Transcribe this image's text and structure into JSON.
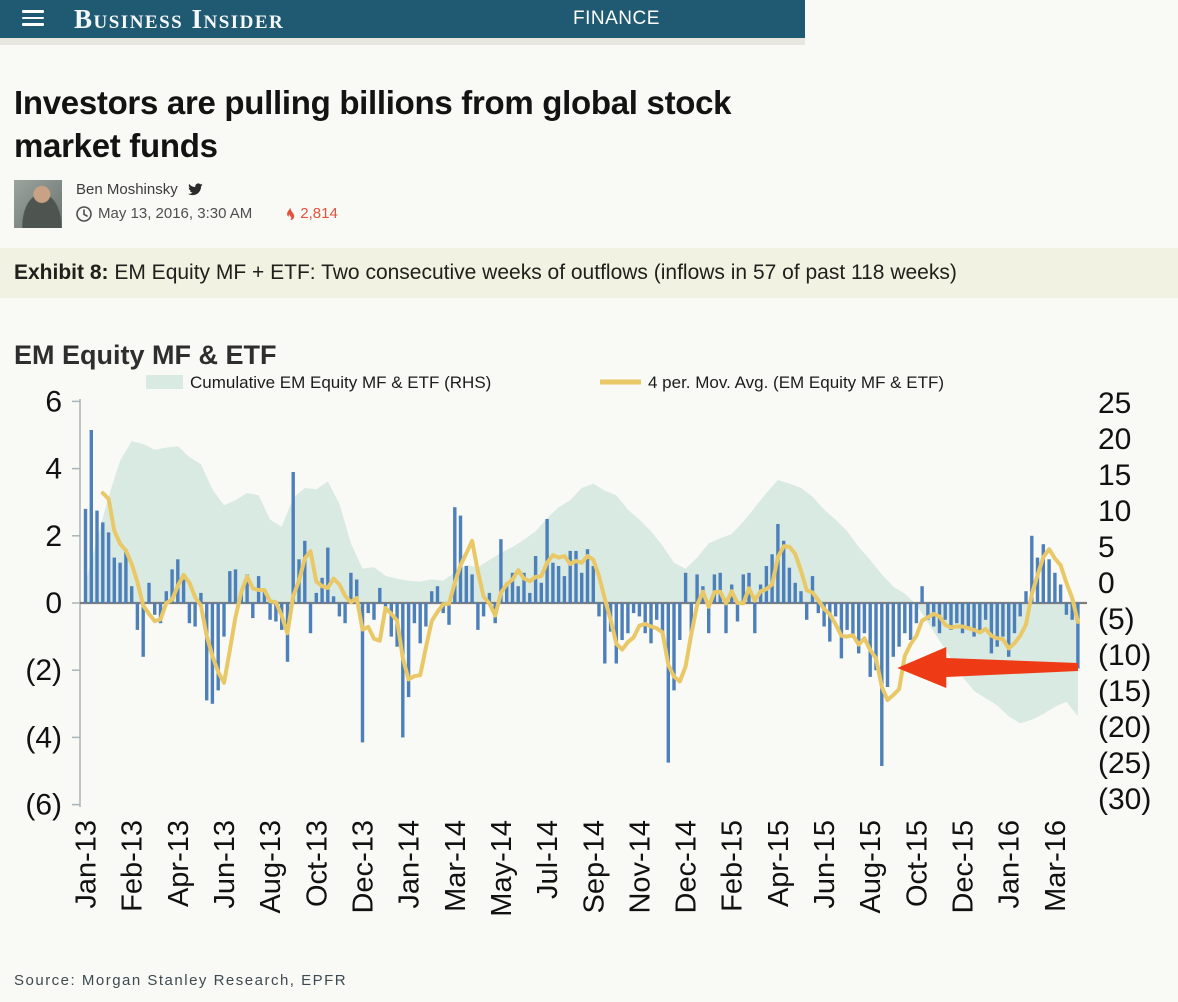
{
  "header": {
    "logo": "Business Insider",
    "section": "FINANCE"
  },
  "article": {
    "headline": "Investors are pulling billions from global stock market funds",
    "author": "Ben Moshinsky",
    "date": "May 13, 2016, 3:30 AM",
    "engagement_count": "2,814"
  },
  "exhibit": {
    "label": "Exhibit 8:",
    "caption": " EM Equity MF + ETF: Two consecutive weeks of outflows (inflows in 57 of past 118 weeks)"
  },
  "source": {
    "text": "Source: Morgan Stanley Research, EPFR"
  },
  "colors": {
    "topbar": "#1f5a72",
    "bar": "#4d80ba",
    "area": "#d9eae3",
    "ma_line": "#e9c868",
    "arrow": "#ee3a15",
    "zero_line": "#7d7d7d",
    "axis": "#a9b4b8",
    "accent_count": "#e2533c"
  },
  "chart_data": {
    "type": "bar",
    "subtype": "combo-bar-area-line",
    "title": "EM Equity MF & ETF",
    "legend": [
      {
        "label": "Cumulative EM Equity MF & ETF (RHS)",
        "type": "area"
      },
      {
        "label": "4 per. Mov. Avg. (EM Equity MF & ETF)",
        "type": "line"
      }
    ],
    "x_unit": "week",
    "n_weeks": 173,
    "x_axis": {
      "labels": [
        "Jan-13",
        "Feb-13",
        "Apr-13",
        "Jun-13",
        "Aug-13",
        "Oct-13",
        "Dec-13",
        "Jan-14",
        "Mar-14",
        "May-14",
        "Jul-14",
        "Sep-14",
        "Nov-14",
        "Dec-14",
        "Feb-15",
        "Apr-15",
        "Jun-15",
        "Aug-15",
        "Oct-15",
        "Dec-15",
        "Jan-16",
        "Mar-16"
      ],
      "label_indices": [
        0,
        8,
        16,
        24,
        32,
        40,
        48,
        56,
        64,
        72,
        80,
        88,
        96,
        104,
        112,
        120,
        128,
        136,
        144,
        152,
        160,
        168
      ]
    },
    "left_axis": {
      "ticks": [
        "6",
        "4",
        "2",
        "0",
        "(2)",
        "(4)",
        "(6)"
      ],
      "values": [
        6,
        4,
        2,
        0,
        -2,
        -4,
        -6
      ],
      "ylim": [
        -6,
        6
      ]
    },
    "right_axis": {
      "ticks": [
        "25",
        "20",
        "15",
        "10",
        "5",
        "0",
        "(5)",
        "(10)",
        "(15)",
        "(20)",
        "(25)",
        "(30)"
      ],
      "values": [
        25,
        20,
        15,
        10,
        5,
        0,
        -5,
        -10,
        -15,
        -20,
        -25,
        -30
      ],
      "ylim": [
        -30,
        25
      ]
    },
    "series": [
      {
        "name": "EM Equity MF & ETF weekly flows",
        "type": "bar",
        "axis": "left",
        "values": [
          2.8,
          5.15,
          2.75,
          2.4,
          2.1,
          1.35,
          1.2,
          1.6,
          0.5,
          -0.8,
          -1.6,
          0.6,
          -0.35,
          -0.6,
          0.35,
          1.0,
          1.3,
          0.7,
          -0.6,
          -0.7,
          0.3,
          -2.9,
          -3.0,
          -2.6,
          -1.0,
          0.95,
          1.0,
          0.35,
          0.85,
          -0.45,
          0.8,
          0.35,
          -0.5,
          -0.55,
          -0.8,
          -1.75,
          3.9,
          1.3,
          1.85,
          -0.9,
          0.3,
          0.75,
          1.65,
          0.2,
          -0.4,
          -0.6,
          0.9,
          0.7,
          -4.15,
          -0.3,
          -0.5,
          0.45,
          -0.25,
          -1.0,
          -1.3,
          -4.0,
          -2.8,
          -0.6,
          -1.2,
          -0.7,
          0.35,
          0.5,
          -0.3,
          -0.65,
          2.85,
          2.6,
          1.1,
          0.85,
          -0.8,
          -0.4,
          0.3,
          -0.6,
          1.9,
          0.6,
          0.9,
          0.5,
          0.9,
          0.3,
          1.4,
          0.6,
          2.5,
          1.2,
          1.1,
          0.8,
          1.55,
          1.55,
          0.9,
          1.6,
          1.1,
          -0.4,
          -1.8,
          -0.85,
          -1.8,
          -1.1,
          -0.9,
          -0.3,
          -0.4,
          -0.9,
          -1.2,
          -0.5,
          -0.9,
          -4.75,
          -2.6,
          -1.1,
          0.9,
          -0.9,
          0.85,
          0.5,
          -0.9,
          0.85,
          0.9,
          -0.9,
          0.55,
          -0.55,
          0.85,
          0.9,
          -0.9,
          0.55,
          1.1,
          1.45,
          2.35,
          1.85,
          1.05,
          0.6,
          0.35,
          -0.5,
          0.8,
          -0.3,
          -0.7,
          -1.15,
          -0.4,
          -1.65,
          -0.8,
          -1.0,
          -1.5,
          -0.9,
          -2.2,
          -2.0,
          -4.85,
          -2.5,
          -1.6,
          -1.3,
          -0.9,
          -1.1,
          -0.6,
          0.5,
          -0.5,
          -0.7,
          -0.9,
          -0.5,
          -0.8,
          -0.6,
          -0.9,
          -0.7,
          -1.0,
          -0.9,
          -0.5,
          -1.5,
          -1.3,
          -1.0,
          -1.6,
          -0.9,
          -0.4,
          0.35,
          2.0,
          1.35,
          1.75,
          1.3,
          0.9,
          0.55,
          -0.35,
          -0.5,
          -1.95
        ]
      },
      {
        "name": "Cumulative EM Equity MF & ETF (RHS)",
        "type": "area",
        "axis": "right",
        "anchor_points": [
          [
            0,
            0
          ],
          [
            2,
            6
          ],
          [
            4,
            12
          ],
          [
            6,
            17
          ],
          [
            8,
            19.7
          ],
          [
            10,
            19.3
          ],
          [
            12,
            18.5
          ],
          [
            14,
            18.8
          ],
          [
            16,
            19
          ],
          [
            18,
            17.5
          ],
          [
            20,
            16.5
          ],
          [
            22,
            13
          ],
          [
            24,
            10.8
          ],
          [
            26,
            11.5
          ],
          [
            28,
            12.5
          ],
          [
            30,
            12.2
          ],
          [
            32,
            8.8
          ],
          [
            34,
            7.8
          ],
          [
            36,
            11.8
          ],
          [
            38,
            13.2
          ],
          [
            40,
            13
          ],
          [
            42,
            14.1
          ],
          [
            44,
            11
          ],
          [
            46,
            5.5
          ],
          [
            48,
            2
          ],
          [
            50,
            2.2
          ],
          [
            52,
            1
          ],
          [
            54,
            0.6
          ],
          [
            56,
            0.3
          ],
          [
            58,
            0.2
          ],
          [
            60,
            0.5
          ],
          [
            62,
            0.3
          ],
          [
            64,
            1.5
          ],
          [
            66,
            2.5
          ],
          [
            68,
            2.2
          ],
          [
            70,
            3.2
          ],
          [
            72,
            4.2
          ],
          [
            74,
            5
          ],
          [
            76,
            6
          ],
          [
            78,
            7.2
          ],
          [
            80,
            9
          ],
          [
            82,
            10.5
          ],
          [
            84,
            11.5
          ],
          [
            86,
            13.2
          ],
          [
            88,
            13.8
          ],
          [
            90,
            12.8
          ],
          [
            92,
            12.2
          ],
          [
            94,
            10.2
          ],
          [
            96,
            8.8
          ],
          [
            98,
            7.2
          ],
          [
            100,
            5.2
          ],
          [
            102,
            2.8
          ],
          [
            104,
            2
          ],
          [
            106,
            3.5
          ],
          [
            108,
            5.5
          ],
          [
            110,
            6.2
          ],
          [
            112,
            6.8
          ],
          [
            114,
            8.5
          ],
          [
            116,
            10.5
          ],
          [
            118,
            12.5
          ],
          [
            120,
            14.3
          ],
          [
            122,
            13.8
          ],
          [
            124,
            13.2
          ],
          [
            126,
            12
          ],
          [
            128,
            10.2
          ],
          [
            130,
            8.8
          ],
          [
            132,
            7.2
          ],
          [
            134,
            5
          ],
          [
            136,
            3.2
          ],
          [
            138,
            1.2
          ],
          [
            140,
            -0.5
          ],
          [
            142,
            -1.5
          ],
          [
            144,
            -3
          ],
          [
            146,
            -5.5
          ],
          [
            148,
            -8
          ],
          [
            150,
            -10.5
          ],
          [
            152,
            -13
          ],
          [
            154,
            -15
          ],
          [
            156,
            -16
          ],
          [
            158,
            -17
          ],
          [
            160,
            -18.5
          ],
          [
            162,
            -19.5
          ],
          [
            164,
            -19
          ],
          [
            166,
            -18.2
          ],
          [
            168,
            -17.2
          ],
          [
            170,
            -16.5
          ],
          [
            172,
            -18.5
          ]
        ]
      },
      {
        "name": "4 per. Mov. Avg. (EM Equity MF & ETF)",
        "type": "line",
        "axis": "left",
        "derived": "4-week trailing moving average of weekly flows"
      }
    ],
    "annotation": {
      "type": "arrow",
      "direction": "left",
      "tip_week": 140,
      "tail_week": 172,
      "value_at_tip": -1.9
    }
  }
}
